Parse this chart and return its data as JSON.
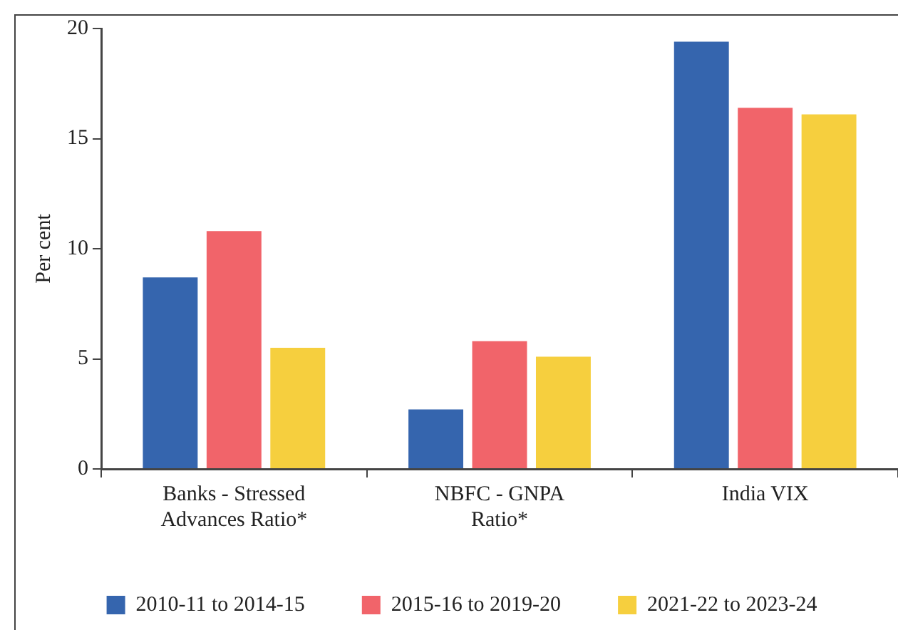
{
  "chart_data": {
    "type": "bar",
    "ylabel": "Per cent",
    "categories": [
      "Banks - Stressed Advances Ratio*",
      "NBFC - GNPA Ratio*",
      "India VIX"
    ],
    "series": [
      {
        "name": "2010-11 to 2014-15",
        "color": "#3565ae",
        "values": [
          8.7,
          2.7,
          19.4
        ]
      },
      {
        "name": "2015-16 to 2019-20",
        "color": "#f1646a",
        "values": [
          10.8,
          5.8,
          16.4
        ]
      },
      {
        "name": "2021-22 to 2023-24",
        "color": "#f6cf3e",
        "values": [
          5.5,
          5.1,
          16.1
        ]
      }
    ],
    "ylim": [
      0,
      20
    ],
    "yticks": [
      0,
      5,
      10,
      15,
      20
    ],
    "grid": false,
    "legend": "bottom"
  }
}
